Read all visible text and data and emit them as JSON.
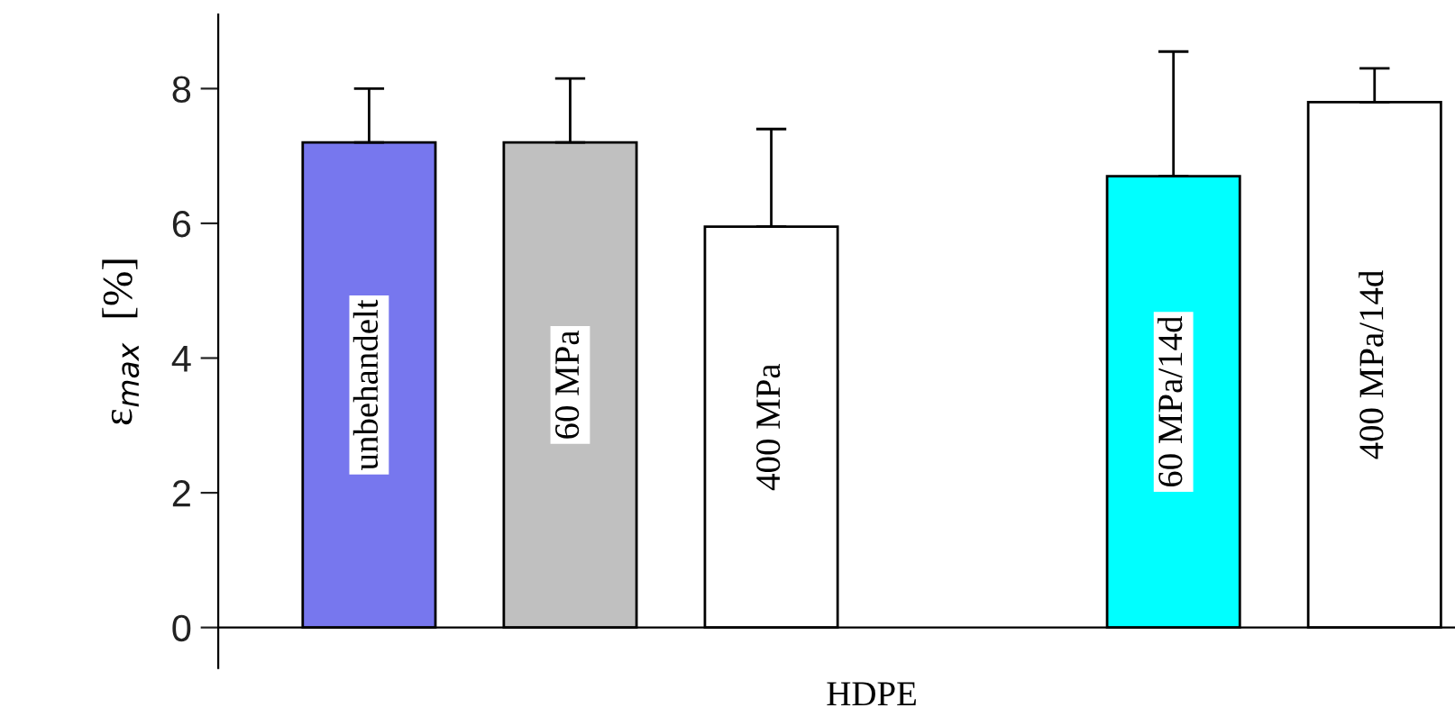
{
  "chart_data": {
    "type": "bar",
    "categories": [
      "unbehandelt",
      "60 MPa",
      "400 MPa",
      null,
      "60 MPa/14d",
      "400 MPa/14d"
    ],
    "values": [
      7.2,
      7.2,
      5.95,
      null,
      6.7,
      7.8
    ],
    "colors": [
      "#7777ee",
      "#c0c0c0",
      "#ffffff",
      null,
      "#00ffff",
      "#ffffff"
    ],
    "errors": [
      [
        7.2,
        8.0
      ],
      [
        7.2,
        8.15
      ],
      [
        5.95,
        7.4
      ],
      null,
      [
        6.7,
        8.55
      ],
      [
        7.8,
        8.3
      ]
    ],
    "xlabel": "HDPE",
    "ylabel": "ε$_{max}$  [%]",
    "ylim": [
      -0.6,
      9.1
    ],
    "yticks": [
      0,
      2,
      4,
      6,
      8
    ]
  }
}
